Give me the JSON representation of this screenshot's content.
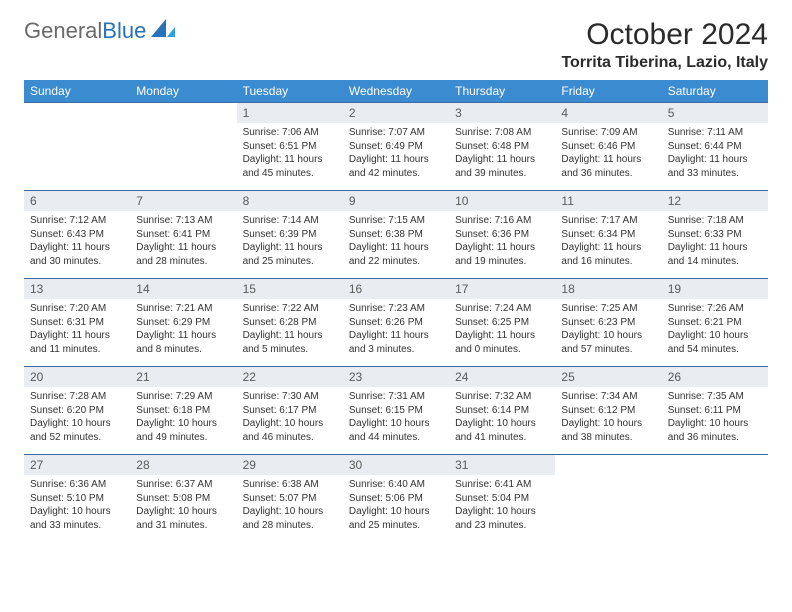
{
  "brand": {
    "part1": "General",
    "part2": "Blue"
  },
  "title": "October 2024",
  "location": "Torrita Tiberina, Lazio, Italy",
  "colors": {
    "header_bg": "#3a8bd0",
    "header_text": "#ffffff",
    "daynum_bg": "#e9edf1",
    "row_border": "#3a6aa0",
    "brand_gray": "#6a6a6a",
    "brand_blue": "#2772bb"
  },
  "weekdays": [
    "Sunday",
    "Monday",
    "Tuesday",
    "Wednesday",
    "Thursday",
    "Friday",
    "Saturday"
  ],
  "weeks": [
    [
      null,
      null,
      {
        "n": "1",
        "sr": "Sunrise: 7:06 AM",
        "ss": "Sunset: 6:51 PM",
        "d1": "Daylight: 11 hours",
        "d2": "and 45 minutes."
      },
      {
        "n": "2",
        "sr": "Sunrise: 7:07 AM",
        "ss": "Sunset: 6:49 PM",
        "d1": "Daylight: 11 hours",
        "d2": "and 42 minutes."
      },
      {
        "n": "3",
        "sr": "Sunrise: 7:08 AM",
        "ss": "Sunset: 6:48 PM",
        "d1": "Daylight: 11 hours",
        "d2": "and 39 minutes."
      },
      {
        "n": "4",
        "sr": "Sunrise: 7:09 AM",
        "ss": "Sunset: 6:46 PM",
        "d1": "Daylight: 11 hours",
        "d2": "and 36 minutes."
      },
      {
        "n": "5",
        "sr": "Sunrise: 7:11 AM",
        "ss": "Sunset: 6:44 PM",
        "d1": "Daylight: 11 hours",
        "d2": "and 33 minutes."
      }
    ],
    [
      {
        "n": "6",
        "sr": "Sunrise: 7:12 AM",
        "ss": "Sunset: 6:43 PM",
        "d1": "Daylight: 11 hours",
        "d2": "and 30 minutes."
      },
      {
        "n": "7",
        "sr": "Sunrise: 7:13 AM",
        "ss": "Sunset: 6:41 PM",
        "d1": "Daylight: 11 hours",
        "d2": "and 28 minutes."
      },
      {
        "n": "8",
        "sr": "Sunrise: 7:14 AM",
        "ss": "Sunset: 6:39 PM",
        "d1": "Daylight: 11 hours",
        "d2": "and 25 minutes."
      },
      {
        "n": "9",
        "sr": "Sunrise: 7:15 AM",
        "ss": "Sunset: 6:38 PM",
        "d1": "Daylight: 11 hours",
        "d2": "and 22 minutes."
      },
      {
        "n": "10",
        "sr": "Sunrise: 7:16 AM",
        "ss": "Sunset: 6:36 PM",
        "d1": "Daylight: 11 hours",
        "d2": "and 19 minutes."
      },
      {
        "n": "11",
        "sr": "Sunrise: 7:17 AM",
        "ss": "Sunset: 6:34 PM",
        "d1": "Daylight: 11 hours",
        "d2": "and 16 minutes."
      },
      {
        "n": "12",
        "sr": "Sunrise: 7:18 AM",
        "ss": "Sunset: 6:33 PM",
        "d1": "Daylight: 11 hours",
        "d2": "and 14 minutes."
      }
    ],
    [
      {
        "n": "13",
        "sr": "Sunrise: 7:20 AM",
        "ss": "Sunset: 6:31 PM",
        "d1": "Daylight: 11 hours",
        "d2": "and 11 minutes."
      },
      {
        "n": "14",
        "sr": "Sunrise: 7:21 AM",
        "ss": "Sunset: 6:29 PM",
        "d1": "Daylight: 11 hours",
        "d2": "and 8 minutes."
      },
      {
        "n": "15",
        "sr": "Sunrise: 7:22 AM",
        "ss": "Sunset: 6:28 PM",
        "d1": "Daylight: 11 hours",
        "d2": "and 5 minutes."
      },
      {
        "n": "16",
        "sr": "Sunrise: 7:23 AM",
        "ss": "Sunset: 6:26 PM",
        "d1": "Daylight: 11 hours",
        "d2": "and 3 minutes."
      },
      {
        "n": "17",
        "sr": "Sunrise: 7:24 AM",
        "ss": "Sunset: 6:25 PM",
        "d1": "Daylight: 11 hours",
        "d2": "and 0 minutes."
      },
      {
        "n": "18",
        "sr": "Sunrise: 7:25 AM",
        "ss": "Sunset: 6:23 PM",
        "d1": "Daylight: 10 hours",
        "d2": "and 57 minutes."
      },
      {
        "n": "19",
        "sr": "Sunrise: 7:26 AM",
        "ss": "Sunset: 6:21 PM",
        "d1": "Daylight: 10 hours",
        "d2": "and 54 minutes."
      }
    ],
    [
      {
        "n": "20",
        "sr": "Sunrise: 7:28 AM",
        "ss": "Sunset: 6:20 PM",
        "d1": "Daylight: 10 hours",
        "d2": "and 52 minutes."
      },
      {
        "n": "21",
        "sr": "Sunrise: 7:29 AM",
        "ss": "Sunset: 6:18 PM",
        "d1": "Daylight: 10 hours",
        "d2": "and 49 minutes."
      },
      {
        "n": "22",
        "sr": "Sunrise: 7:30 AM",
        "ss": "Sunset: 6:17 PM",
        "d1": "Daylight: 10 hours",
        "d2": "and 46 minutes."
      },
      {
        "n": "23",
        "sr": "Sunrise: 7:31 AM",
        "ss": "Sunset: 6:15 PM",
        "d1": "Daylight: 10 hours",
        "d2": "and 44 minutes."
      },
      {
        "n": "24",
        "sr": "Sunrise: 7:32 AM",
        "ss": "Sunset: 6:14 PM",
        "d1": "Daylight: 10 hours",
        "d2": "and 41 minutes."
      },
      {
        "n": "25",
        "sr": "Sunrise: 7:34 AM",
        "ss": "Sunset: 6:12 PM",
        "d1": "Daylight: 10 hours",
        "d2": "and 38 minutes."
      },
      {
        "n": "26",
        "sr": "Sunrise: 7:35 AM",
        "ss": "Sunset: 6:11 PM",
        "d1": "Daylight: 10 hours",
        "d2": "and 36 minutes."
      }
    ],
    [
      {
        "n": "27",
        "sr": "Sunrise: 6:36 AM",
        "ss": "Sunset: 5:10 PM",
        "d1": "Daylight: 10 hours",
        "d2": "and 33 minutes."
      },
      {
        "n": "28",
        "sr": "Sunrise: 6:37 AM",
        "ss": "Sunset: 5:08 PM",
        "d1": "Daylight: 10 hours",
        "d2": "and 31 minutes."
      },
      {
        "n": "29",
        "sr": "Sunrise: 6:38 AM",
        "ss": "Sunset: 5:07 PM",
        "d1": "Daylight: 10 hours",
        "d2": "and 28 minutes."
      },
      {
        "n": "30",
        "sr": "Sunrise: 6:40 AM",
        "ss": "Sunset: 5:06 PM",
        "d1": "Daylight: 10 hours",
        "d2": "and 25 minutes."
      },
      {
        "n": "31",
        "sr": "Sunrise: 6:41 AM",
        "ss": "Sunset: 5:04 PM",
        "d1": "Daylight: 10 hours",
        "d2": "and 23 minutes."
      },
      null,
      null
    ]
  ]
}
